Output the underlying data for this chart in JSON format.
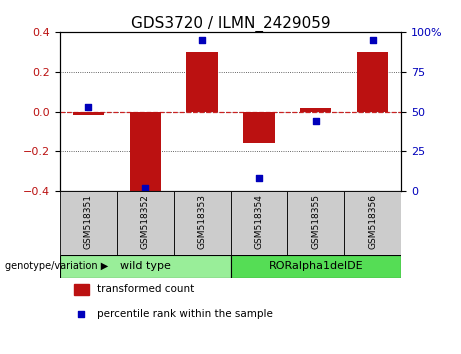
{
  "title": "GDS3720 / ILMN_2429059",
  "categories": [
    "GSM518351",
    "GSM518352",
    "GSM518353",
    "GSM518354",
    "GSM518355",
    "GSM518356"
  ],
  "bar_values": [
    -0.02,
    -0.42,
    0.3,
    -0.16,
    0.02,
    0.3
  ],
  "percentile_values": [
    53,
    2,
    95,
    8,
    44,
    95
  ],
  "ylim_left": [
    -0.4,
    0.4
  ],
  "ylim_right": [
    0,
    100
  ],
  "yticks_left": [
    -0.4,
    -0.2,
    0.0,
    0.2,
    0.4
  ],
  "yticks_right": [
    0,
    25,
    50,
    75,
    100
  ],
  "bar_color": "#bb1111",
  "dot_color": "#0000bb",
  "zero_line_color": "#cc2222",
  "grid_color": "#333333",
  "group_labels": [
    "wild type",
    "RORalpha1delDE"
  ],
  "group_col_ranges": [
    [
      0,
      2
    ],
    [
      3,
      5
    ]
  ],
  "group_colors": [
    "#99ee99",
    "#55dd55"
  ],
  "genotype_label": "genotype/variation",
  "legend_bar_label": "transformed count",
  "legend_dot_label": "percentile rank within the sample",
  "title_fontsize": 11,
  "tick_fontsize": 8,
  "label_fontsize": 7.5,
  "xtick_label_color": "#cccccc",
  "tick_box_color": "#cccccc"
}
